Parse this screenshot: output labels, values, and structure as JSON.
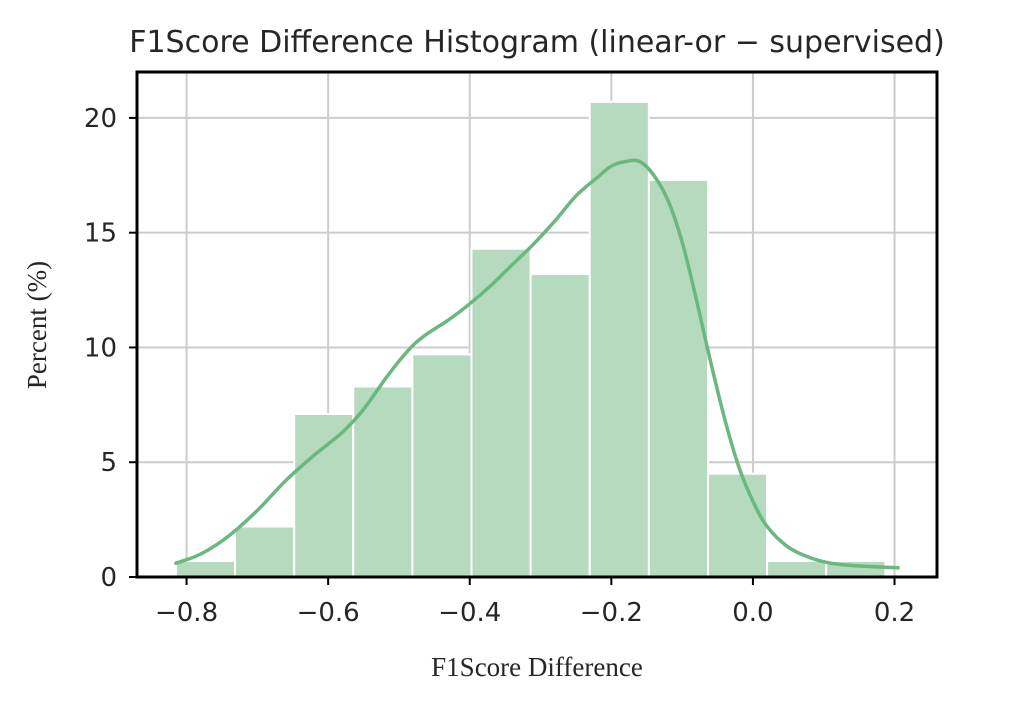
{
  "chart_data": {
    "type": "bar",
    "title": "F1Score Difference Histogram (linear-or − supervised)",
    "xlabel": "F1Score Difference",
    "ylabel": "Percent (%)",
    "xlim": [
      -0.87,
      0.26
    ],
    "ylim": [
      0,
      22
    ],
    "x_ticks": [
      -0.8,
      -0.6,
      -0.4,
      -0.2,
      0.0,
      0.2
    ],
    "x_tick_labels": [
      "−0.8",
      "−0.6",
      "−0.4",
      "−0.2",
      "0.0",
      "0.2"
    ],
    "y_ticks": [
      0,
      5,
      10,
      15,
      20
    ],
    "y_tick_labels": [
      "0",
      "5",
      "10",
      "15",
      "20"
    ],
    "grid": true,
    "bar_color": "#b5dabd",
    "kde_color": "#6ab77f",
    "bin_edges": [
      -0.815,
      -0.7315,
      -0.648,
      -0.5645,
      -0.481,
      -0.3975,
      -0.314,
      -0.2305,
      -0.147,
      -0.0635,
      0.02,
      0.1035,
      0.187
    ],
    "values": [
      0.7,
      2.2,
      7.1,
      8.3,
      9.7,
      14.3,
      13.2,
      20.7,
      17.3,
      4.5,
      0.7,
      0.7
    ],
    "kde": {
      "x": [
        -0.815,
        -0.78,
        -0.74,
        -0.7,
        -0.66,
        -0.62,
        -0.58,
        -0.55,
        -0.52,
        -0.5,
        -0.48,
        -0.46,
        -0.43,
        -0.4,
        -0.37,
        -0.34,
        -0.31,
        -0.28,
        -0.25,
        -0.22,
        -0.2,
        -0.18,
        -0.16,
        -0.14,
        -0.12,
        -0.1,
        -0.08,
        -0.06,
        -0.04,
        -0.02,
        0.0,
        0.02,
        0.05,
        0.08,
        0.11,
        0.14,
        0.17,
        0.205
      ],
      "y": [
        0.6,
        1.0,
        1.8,
        2.9,
        4.2,
        5.3,
        6.3,
        7.3,
        8.6,
        9.4,
        10.1,
        10.6,
        11.2,
        11.9,
        12.7,
        13.6,
        14.5,
        15.5,
        16.6,
        17.4,
        17.9,
        18.1,
        18.1,
        17.5,
        16.4,
        14.6,
        12.1,
        9.4,
        6.9,
        4.8,
        3.3,
        2.2,
        1.3,
        0.85,
        0.6,
        0.5,
        0.45,
        0.4
      ]
    }
  }
}
